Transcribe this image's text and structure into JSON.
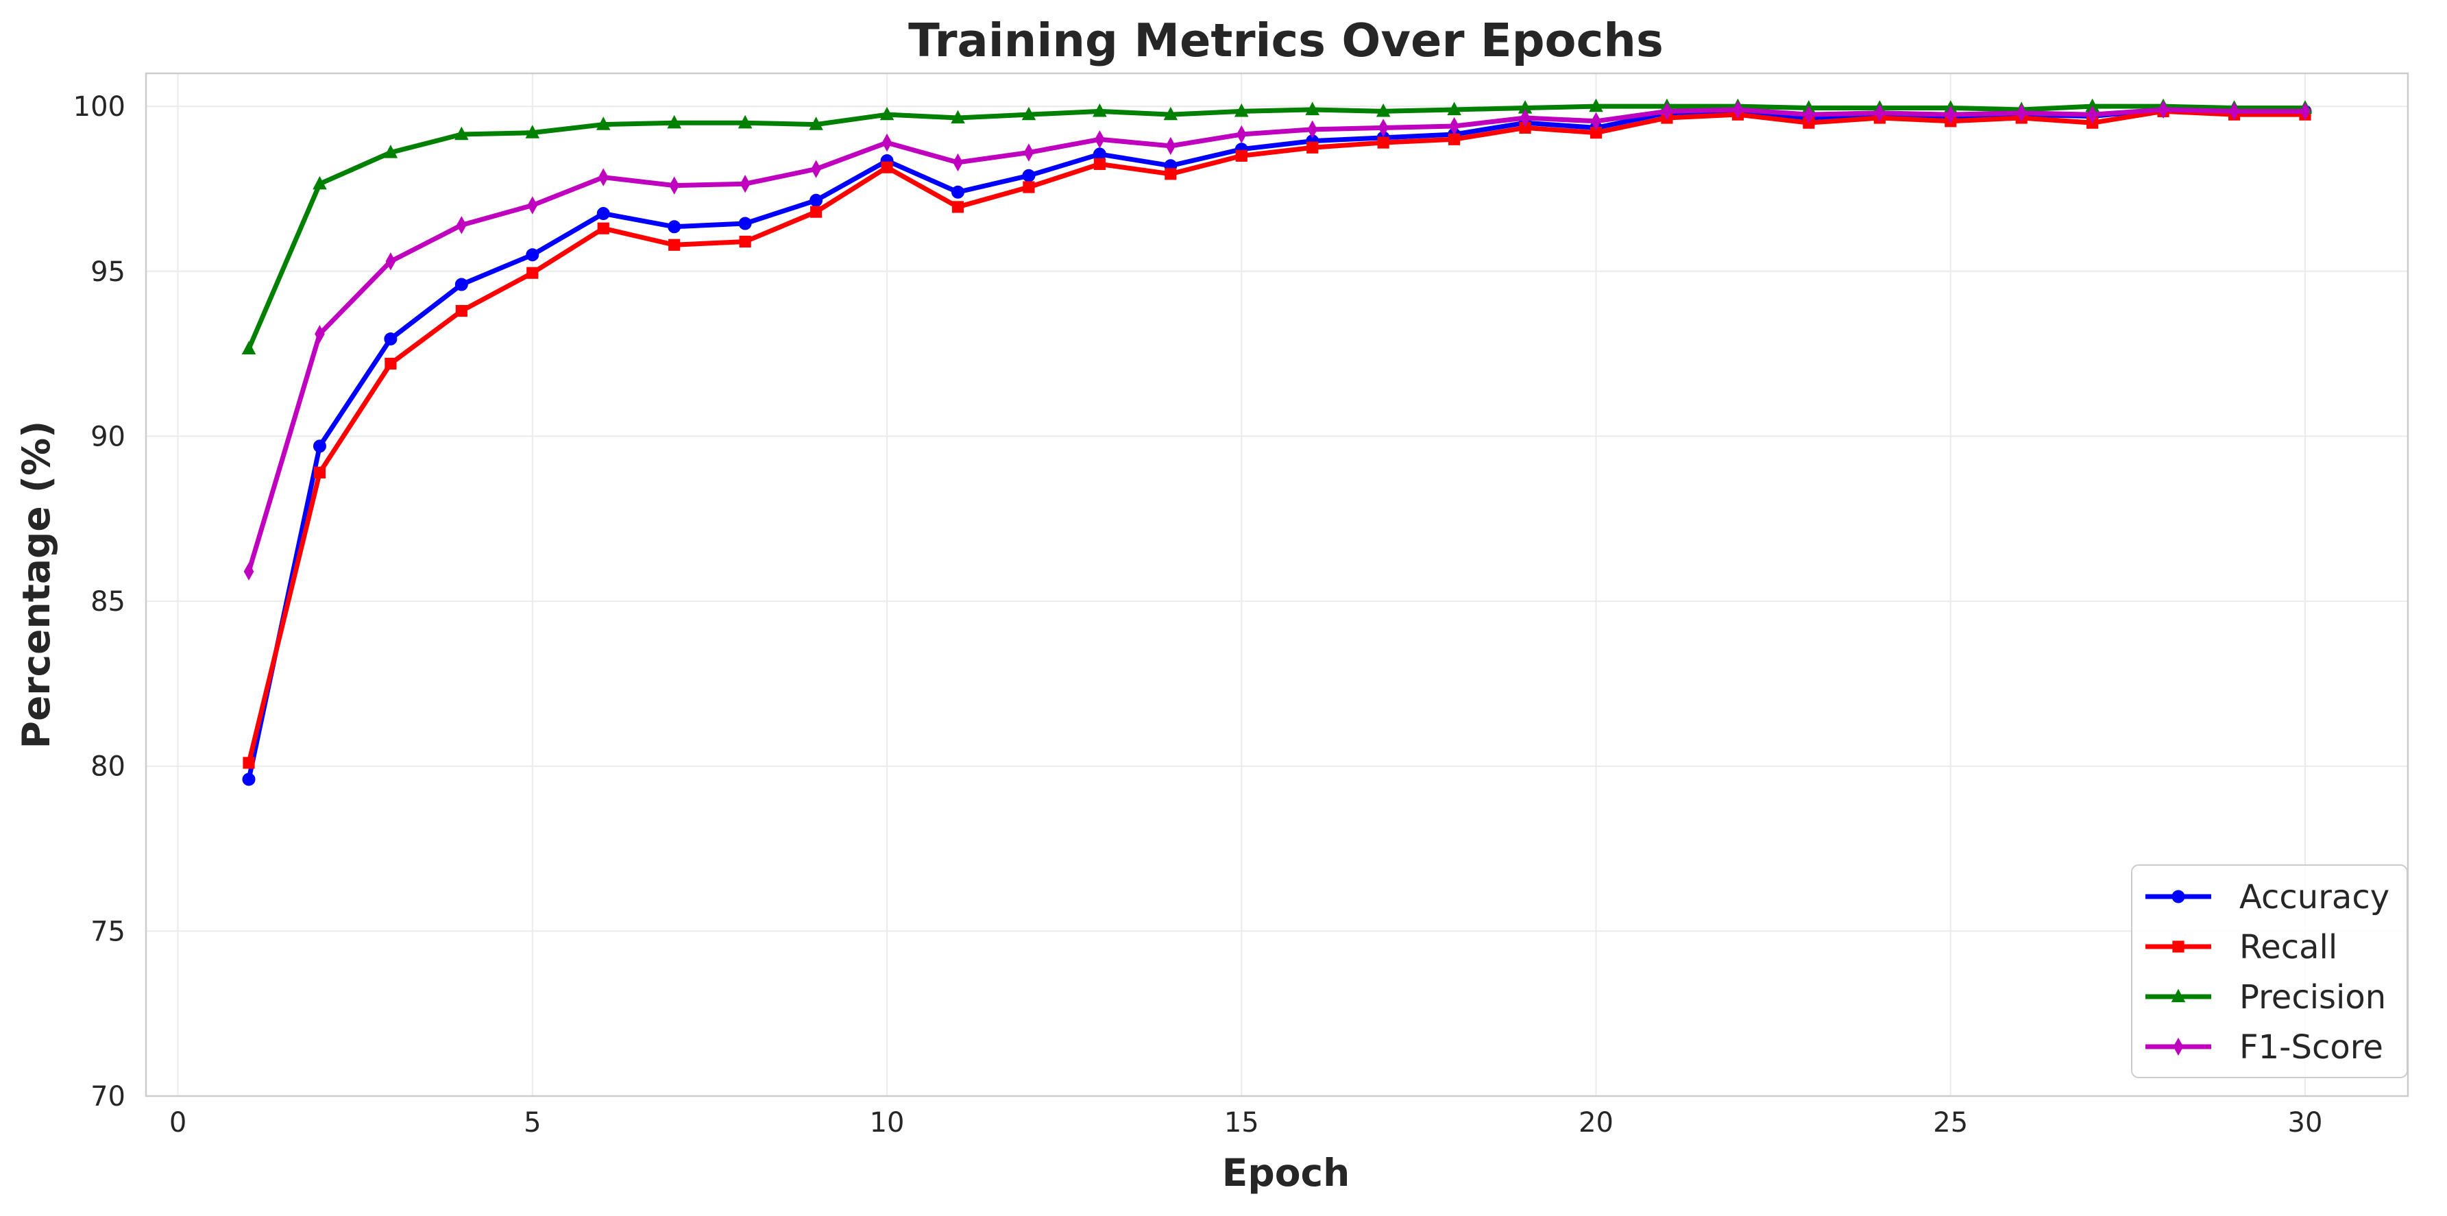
{
  "chart_data": {
    "type": "line",
    "title": "Training Metrics Over Epochs",
    "xlabel": "Epoch",
    "ylabel": "Percentage (%)",
    "xlim": [
      -0.45,
      31.45
    ],
    "ylim": [
      70,
      101
    ],
    "xticks": [
      0,
      5,
      10,
      15,
      20,
      25,
      30
    ],
    "yticks": [
      70,
      75,
      80,
      85,
      90,
      95,
      100
    ],
    "grid": true,
    "legend_position": "lower-right",
    "x": [
      1,
      2,
      3,
      4,
      5,
      6,
      7,
      8,
      9,
      10,
      11,
      12,
      13,
      14,
      15,
      16,
      17,
      18,
      19,
      20,
      21,
      22,
      23,
      24,
      25,
      26,
      27,
      28,
      29,
      30
    ],
    "series": [
      {
        "name": "Accuracy",
        "color": "#0000ff",
        "marker": "circle",
        "values": [
          79.6,
          89.7,
          92.95,
          94.6,
          95.5,
          96.75,
          96.35,
          96.45,
          97.15,
          98.35,
          97.4,
          97.9,
          98.55,
          98.2,
          98.7,
          98.95,
          99.05,
          99.15,
          99.5,
          99.35,
          99.8,
          99.85,
          99.65,
          99.75,
          99.7,
          99.75,
          99.7,
          99.9,
          99.85,
          99.85
        ]
      },
      {
        "name": "Recall",
        "color": "#ff0000",
        "marker": "square",
        "values": [
          80.1,
          88.9,
          92.2,
          93.8,
          94.95,
          96.3,
          95.8,
          95.9,
          96.8,
          98.15,
          96.95,
          97.55,
          98.25,
          97.95,
          98.5,
          98.75,
          98.9,
          99.0,
          99.35,
          99.2,
          99.65,
          99.75,
          99.5,
          99.65,
          99.55,
          99.65,
          99.5,
          99.85,
          99.75,
          99.75
        ]
      },
      {
        "name": "Precision",
        "color": "#008000",
        "marker": "triangle",
        "values": [
          92.65,
          97.65,
          98.6,
          99.15,
          99.2,
          99.45,
          99.5,
          99.5,
          99.45,
          99.75,
          99.65,
          99.75,
          99.85,
          99.75,
          99.85,
          99.9,
          99.85,
          99.9,
          99.95,
          100.0,
          100.0,
          100.0,
          99.95,
          99.95,
          99.95,
          99.9,
          100.0,
          100.0,
          99.95,
          99.95
        ]
      },
      {
        "name": "F1-Score",
        "color": "#bf00bf",
        "marker": "diamond",
        "values": [
          85.9,
          93.1,
          95.3,
          96.4,
          97.0,
          97.85,
          97.6,
          97.65,
          98.1,
          98.9,
          98.3,
          98.6,
          99.0,
          98.8,
          99.15,
          99.3,
          99.35,
          99.4,
          99.65,
          99.55,
          99.85,
          99.9,
          99.75,
          99.8,
          99.75,
          99.8,
          99.75,
          99.9,
          99.85,
          99.85
        ]
      }
    ]
  }
}
